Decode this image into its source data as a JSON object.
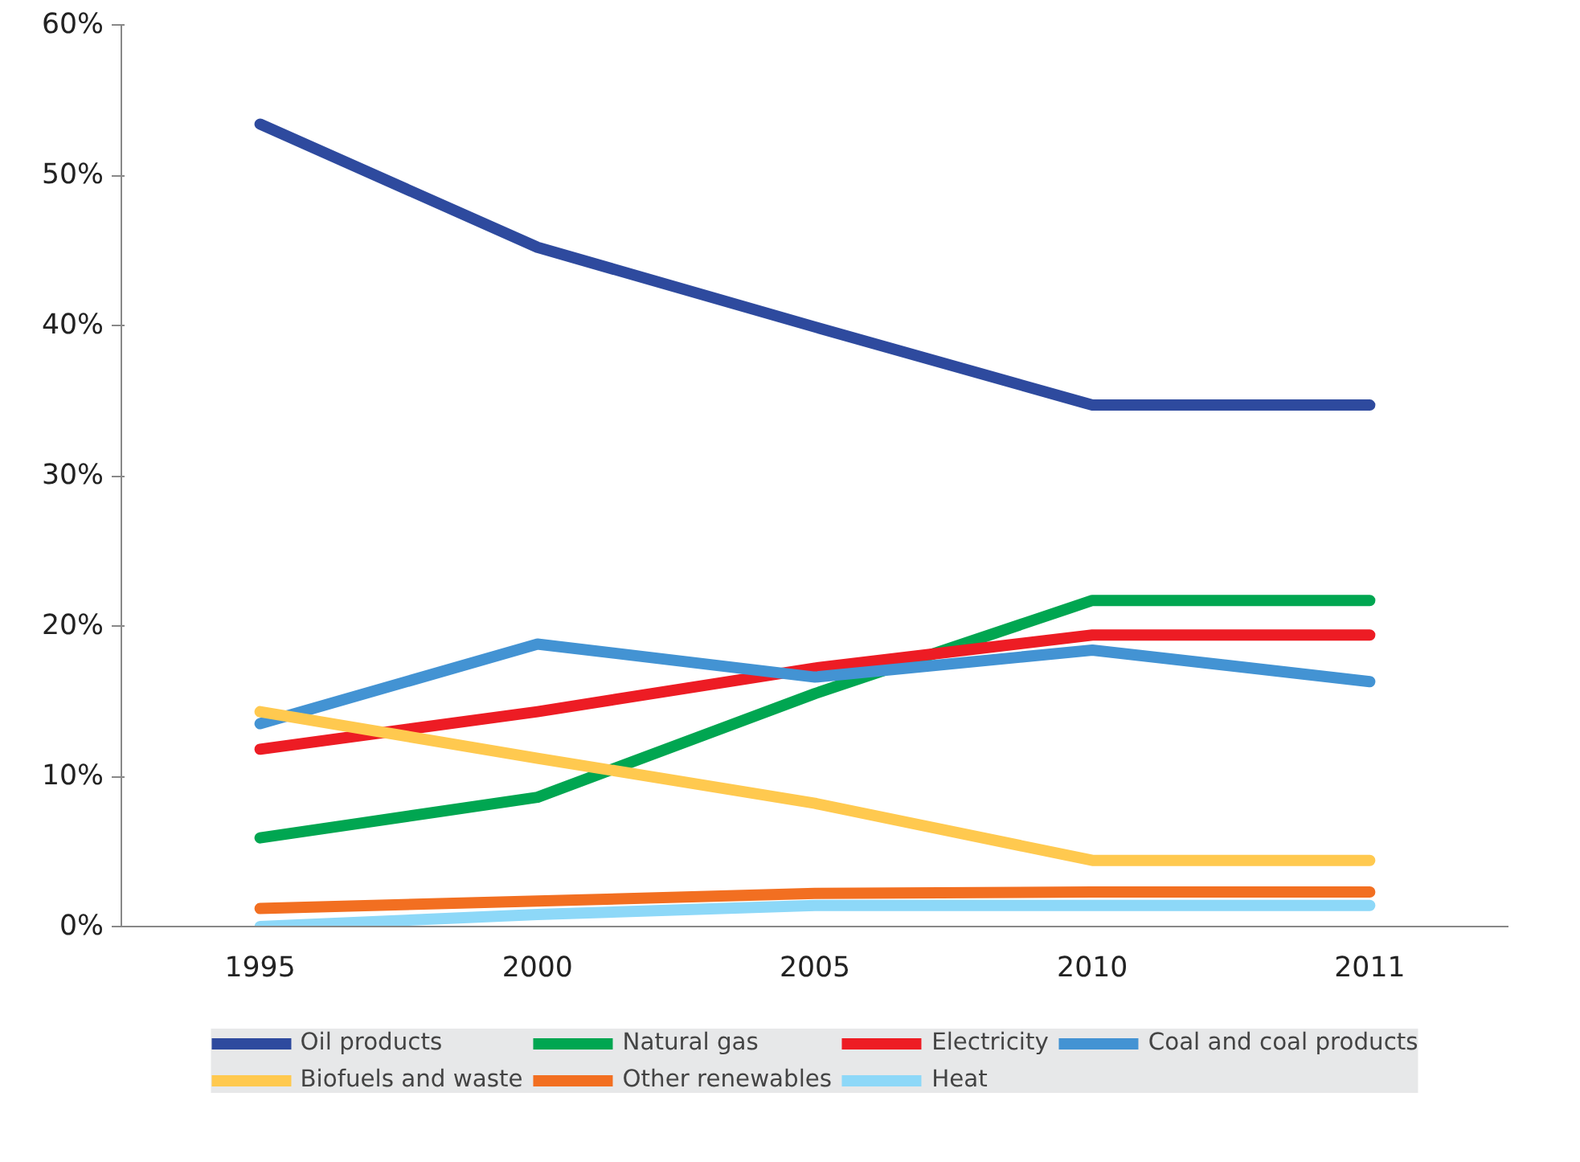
{
  "chart_data": {
    "type": "line",
    "categories": [
      "1995",
      "2000",
      "2005",
      "2010",
      "2011"
    ],
    "ylim": [
      0,
      60
    ],
    "yticks": [
      {
        "value": 0,
        "label": "0%"
      },
      {
        "value": 10,
        "label": "10%"
      },
      {
        "value": 20,
        "label": "20%"
      },
      {
        "value": 30,
        "label": "30%"
      },
      {
        "value": 40,
        "label": "40%"
      },
      {
        "value": 50,
        "label": "50%"
      },
      {
        "value": 60,
        "label": "60%"
      }
    ],
    "grid": false,
    "legend": "bottom",
    "marker": "none",
    "line_style": "solid",
    "series": [
      {
        "name": "Oil products",
        "color": "#2e4a9e",
        "values": [
          53.4,
          45.2,
          39.9,
          34.7,
          34.7
        ]
      },
      {
        "name": "Natural gas",
        "color": "#00a651",
        "values": [
          5.9,
          8.6,
          15.5,
          21.7,
          21.7
        ]
      },
      {
        "name": "Electricity",
        "color": "#ed1c24",
        "values": [
          11.8,
          14.3,
          17.2,
          19.4,
          19.4
        ]
      },
      {
        "name": "Coal and coal products",
        "color": "#4393d3",
        "values": [
          13.5,
          18.8,
          16.6,
          18.4,
          16.3
        ]
      },
      {
        "name": "Biofuels and waste",
        "color": "#ffc94f",
        "values": [
          14.3,
          11.2,
          8.2,
          4.4,
          4.4
        ]
      },
      {
        "name": "Other renewables",
        "color": "#f26f21",
        "values": [
          1.2,
          1.7,
          2.2,
          2.3,
          2.3
        ]
      },
      {
        "name": "Heat",
        "color": "#8dd8f8",
        "values": [
          0.0,
          0.8,
          1.4,
          1.4,
          1.4
        ]
      }
    ]
  }
}
